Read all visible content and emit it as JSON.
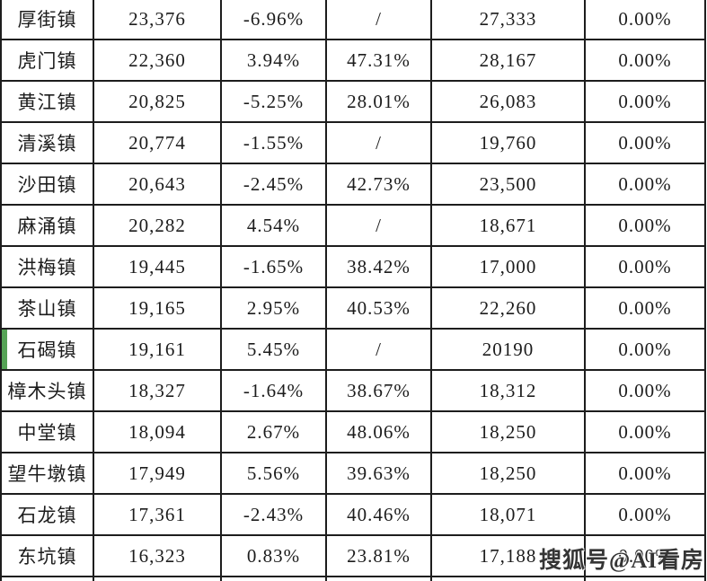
{
  "colors": {
    "green": "#2cbc80",
    "red": "#dc322d",
    "row_marker": "#56a356",
    "border": "#1d1d1d",
    "text": "#1c1c1c"
  },
  "watermark": {
    "text": "搜狐号@AI看房"
  },
  "table": {
    "rows": [
      {
        "town": "厚街镇",
        "value_1": "23,376",
        "pct_1": "-6.96%",
        "pct_1_color": "green",
        "pct_2": "/",
        "pct_2_color": "black",
        "value_2": "27,333",
        "pct_3": "0.00%",
        "marked": false
      },
      {
        "town": "虎门镇",
        "value_1": "22,360",
        "pct_1": "3.94%",
        "pct_1_color": "red",
        "pct_2": "47.31%",
        "pct_2_color": "red",
        "value_2": "28,167",
        "pct_3": "0.00%",
        "marked": false
      },
      {
        "town": "黄江镇",
        "value_1": "20,825",
        "pct_1": "-5.25%",
        "pct_1_color": "green",
        "pct_2": "28.01%",
        "pct_2_color": "red",
        "value_2": "26,083",
        "pct_3": "0.00%",
        "marked": false
      },
      {
        "town": "清溪镇",
        "value_1": "20,774",
        "pct_1": "-1.55%",
        "pct_1_color": "green",
        "pct_2": "/",
        "pct_2_color": "black",
        "value_2": "19,760",
        "pct_3": "0.00%",
        "marked": false
      },
      {
        "town": "沙田镇",
        "value_1": "20,643",
        "pct_1": "-2.45%",
        "pct_1_color": "green",
        "pct_2": "42.73%",
        "pct_2_color": "red",
        "value_2": "23,500",
        "pct_3": "0.00%",
        "marked": false
      },
      {
        "town": "麻涌镇",
        "value_1": "20,282",
        "pct_1": "4.54%",
        "pct_1_color": "red",
        "pct_2": "/",
        "pct_2_color": "black",
        "value_2": "18,671",
        "pct_3": "0.00%",
        "marked": false
      },
      {
        "town": "洪梅镇",
        "value_1": "19,445",
        "pct_1": "-1.65%",
        "pct_1_color": "green",
        "pct_2": "38.42%",
        "pct_2_color": "red",
        "value_2": "17,000",
        "pct_3": "0.00%",
        "marked": false
      },
      {
        "town": "茶山镇",
        "value_1": "19,165",
        "pct_1": "2.95%",
        "pct_1_color": "red",
        "pct_2": "40.53%",
        "pct_2_color": "red",
        "value_2": "22,260",
        "pct_3": "0.00%",
        "marked": false
      },
      {
        "town": "石碣镇",
        "value_1": "19,161",
        "pct_1": "5.45%",
        "pct_1_color": "red",
        "pct_2": "/",
        "pct_2_color": "black",
        "value_2": "20190",
        "pct_3": "0.00%",
        "marked": true
      },
      {
        "town": "樟木头镇",
        "value_1": "18,327",
        "pct_1": "-1.64%",
        "pct_1_color": "green",
        "pct_2": "38.67%",
        "pct_2_color": "red",
        "value_2": "18,312",
        "pct_3": "0.00%",
        "marked": false
      },
      {
        "town": "中堂镇",
        "value_1": "18,094",
        "pct_1": "2.67%",
        "pct_1_color": "red",
        "pct_2": "48.06%",
        "pct_2_color": "red",
        "value_2": "18,250",
        "pct_3": "0.00%",
        "marked": false
      },
      {
        "town": "望牛墩镇",
        "value_1": "17,949",
        "pct_1": "5.56%",
        "pct_1_color": "red",
        "pct_2": "39.63%",
        "pct_2_color": "red",
        "value_2": "18,250",
        "pct_3": "0.00%",
        "marked": false
      },
      {
        "town": "石龙镇",
        "value_1": "17,361",
        "pct_1": "-2.43%",
        "pct_1_color": "green",
        "pct_2": "40.46%",
        "pct_2_color": "red",
        "value_2": "18,071",
        "pct_3": "0.00%",
        "marked": false
      },
      {
        "town": "东坑镇",
        "value_1": "16,323",
        "pct_1": "0.83%",
        "pct_1_color": "red",
        "pct_2": "23.81%",
        "pct_2_color": "red",
        "value_2": "17,188",
        "pct_3": "0.00%",
        "marked": false
      }
    ]
  }
}
